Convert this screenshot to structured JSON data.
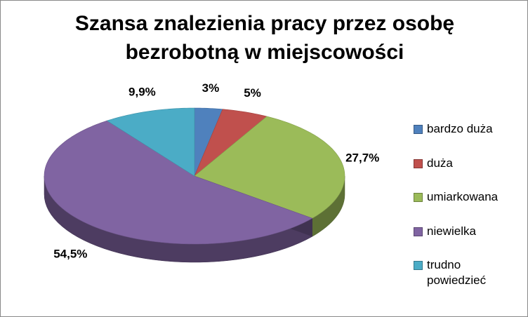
{
  "chart_data": {
    "type": "pie",
    "title": "Szansa znalezienia pracy przez osobę bezrobotną w miejscowości",
    "categories": [
      "bardzo duża",
      "duża",
      "umiarkowana",
      "niewielka",
      "trudno powiedzieć"
    ],
    "values": [
      3,
      5,
      27.7,
      54.5,
      9.9
    ],
    "value_labels": [
      "3%",
      "5%",
      "27,7%",
      "54,5%",
      "9,9%"
    ],
    "colors": [
      "#4f81bd",
      "#c0504d",
      "#9bbb59",
      "#8064a2",
      "#4bacc6"
    ],
    "legend": "right"
  }
}
